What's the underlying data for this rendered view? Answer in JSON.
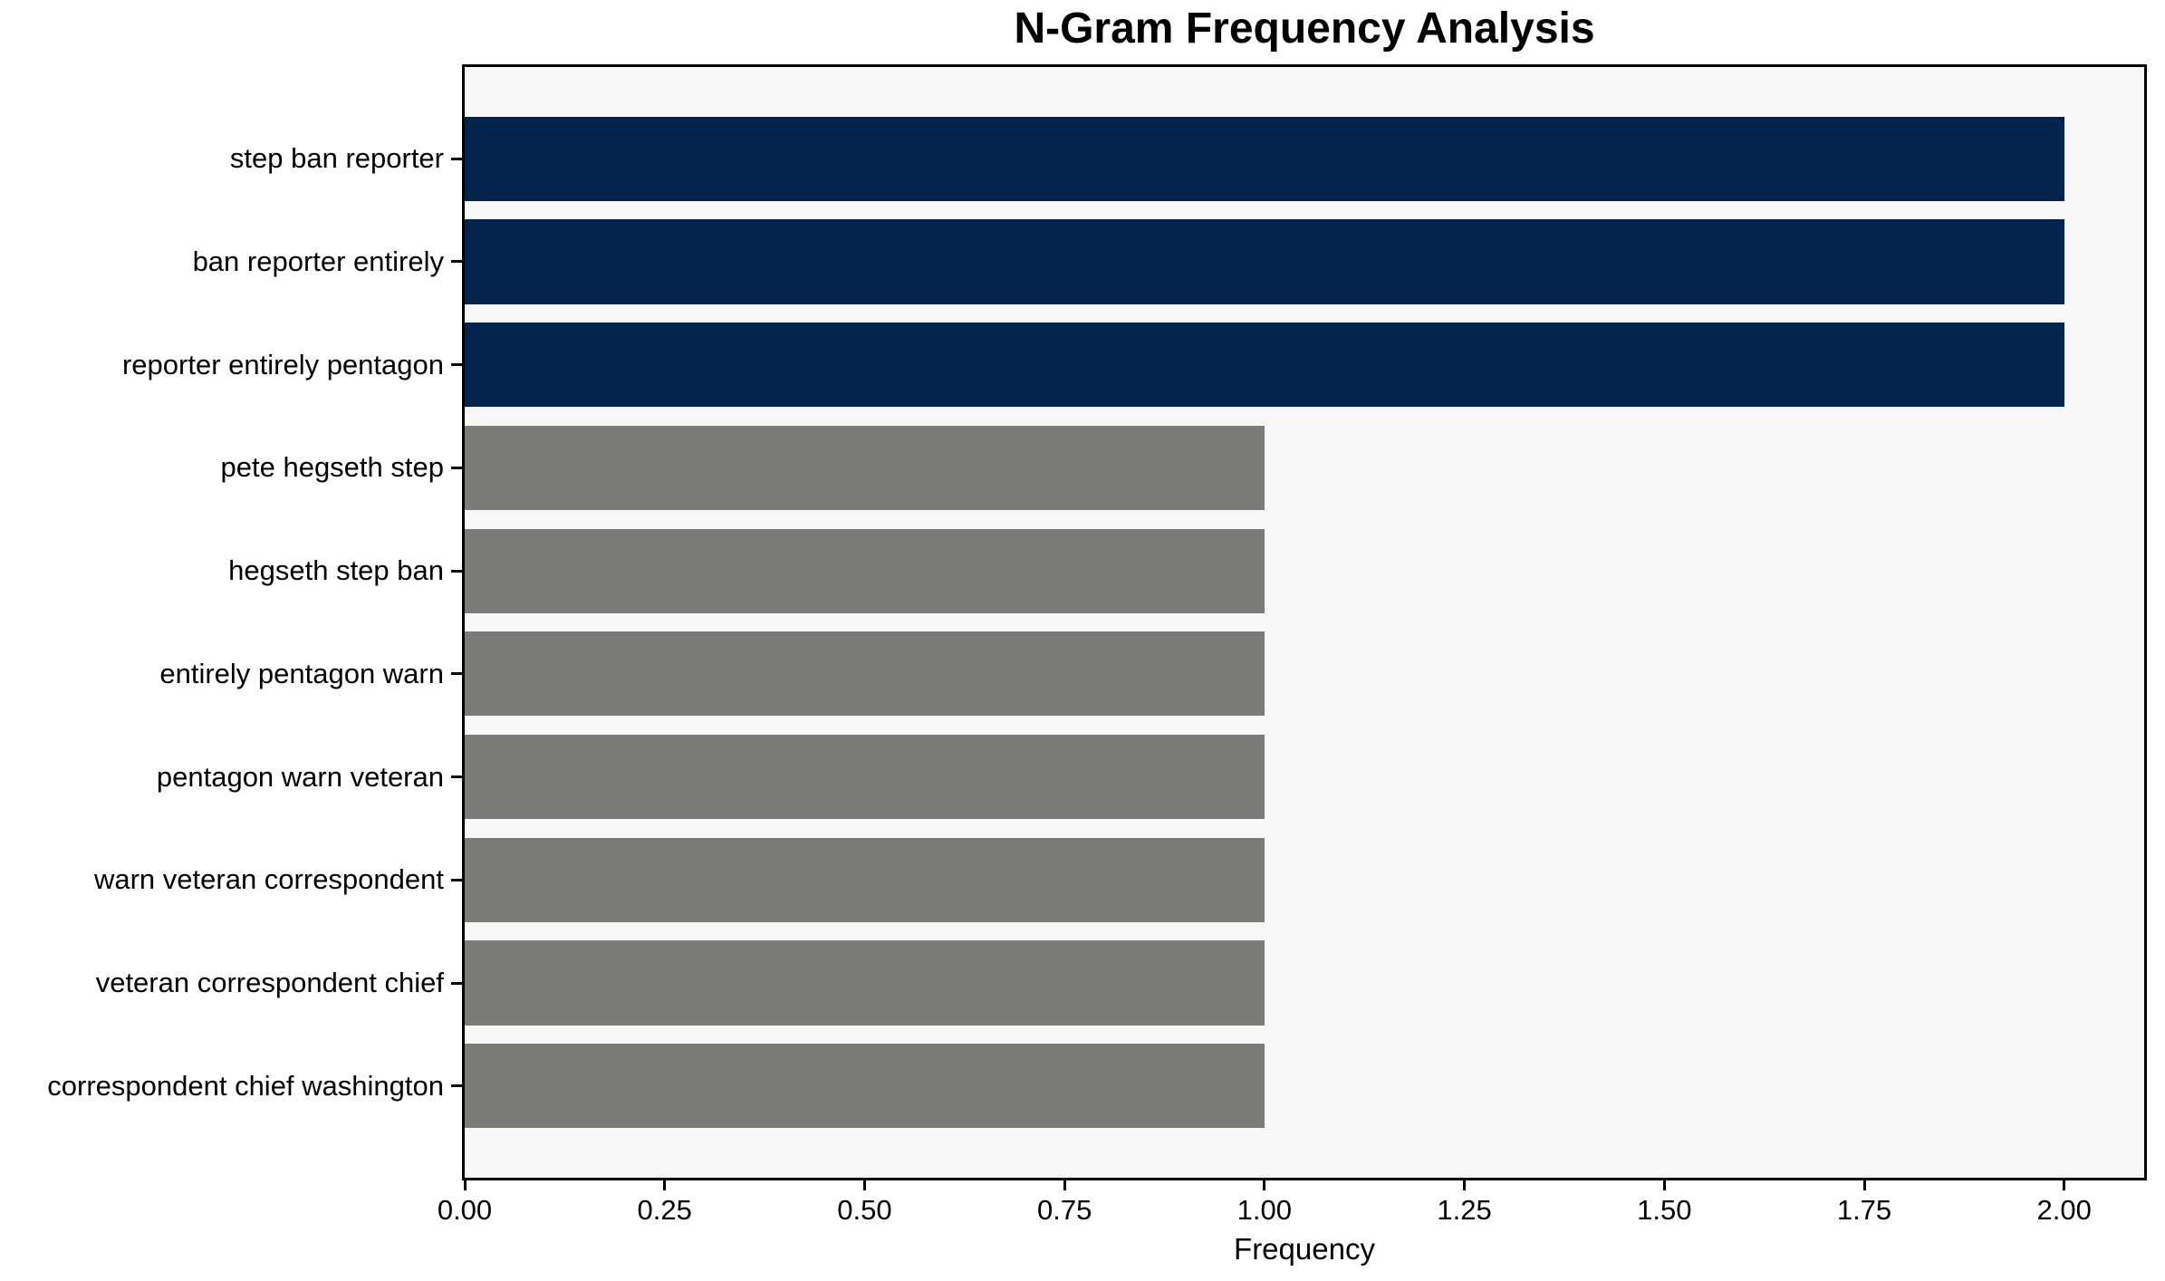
{
  "chart_data": {
    "type": "bar",
    "orientation": "horizontal",
    "title": "N-Gram Frequency Analysis",
    "xlabel": "Frequency",
    "ylabel": "",
    "categories": [
      "step ban reporter",
      "ban reporter entirely",
      "reporter entirely pentagon",
      "pete hegseth step",
      "hegseth step ban",
      "entirely pentagon warn",
      "pentagon warn veteran",
      "warn veteran correspondent",
      "veteran correspondent chief",
      "correspondent chief washington"
    ],
    "values": [
      2,
      2,
      2,
      1,
      1,
      1,
      1,
      1,
      1,
      1
    ],
    "bar_colors": [
      "#02234c",
      "#02234c",
      "#02234c",
      "#7b7b78",
      "#7b7b78",
      "#7b7b78",
      "#7b7b78",
      "#7b7b78",
      "#7b7b78",
      "#7b7b78"
    ],
    "xlim": [
      0,
      2.1
    ],
    "xticks": [
      {
        "value": 0.0,
        "label": "0.00"
      },
      {
        "value": 0.25,
        "label": "0.25"
      },
      {
        "value": 0.5,
        "label": "0.50"
      },
      {
        "value": 0.75,
        "label": "0.75"
      },
      {
        "value": 1.0,
        "label": "1.00"
      },
      {
        "value": 1.25,
        "label": "1.25"
      },
      {
        "value": 1.5,
        "label": "1.50"
      },
      {
        "value": 1.75,
        "label": "1.75"
      },
      {
        "value": 2.0,
        "label": "2.00"
      }
    ],
    "grid": false,
    "legend": null,
    "colors": {
      "highlight_navy": "#02234c",
      "default_gray": "#7b7b78",
      "plot_background": "#f7f7f7",
      "figure_background": "#ffffff",
      "spine": "#000000"
    }
  }
}
